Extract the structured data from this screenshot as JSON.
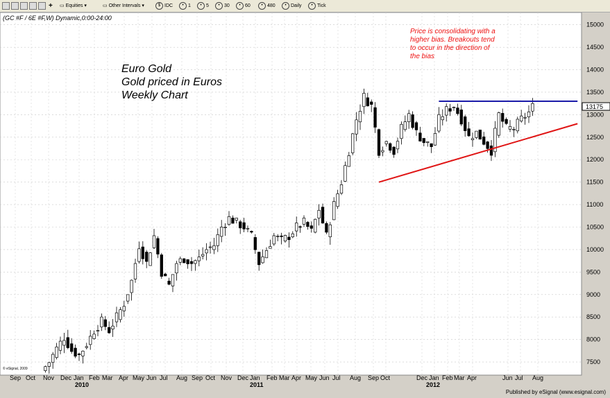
{
  "toolbar": {
    "equities_label": "Equities",
    "intervals_label": "Other Intervals",
    "buttons": [
      "IDC",
      "1",
      "5",
      "30",
      "60",
      "480",
      "Daily",
      "Tick"
    ]
  },
  "chart_data": {
    "type": "candlestick",
    "symbol_label": "(GC #F / 6E #F,W) Dynamic,0:00-24:00",
    "annotation_main": [
      "Euro Gold",
      "Gold priced in Euros",
      "Weekly Chart"
    ],
    "annotation_note": [
      "Price is consolidating with a",
      "higher bias. Breakouts tend",
      "to occur in the direction of",
      "the bias"
    ],
    "watermark": "© eSignal, 2009",
    "last_price": "13175",
    "y_ticks": [
      "15000",
      "14500",
      "14000",
      "13500",
      "13000",
      "12500",
      "12000",
      "11500",
      "11000",
      "10500",
      "10000",
      "9500",
      "9000",
      "8500",
      "8000",
      "7500"
    ],
    "ylim": [
      7300,
      15150
    ],
    "month_labels": [
      "Sep",
      "Oct",
      "Nov",
      "Dec",
      "Jan",
      "Feb",
      "Mar",
      "Apr",
      "May",
      "Jun",
      "Jul",
      "Aug",
      "Sep",
      "Oct",
      "Nov",
      "Dec",
      "Jan",
      "Feb",
      "Mar",
      "Apr",
      "May",
      "Jun",
      "Jul",
      "Aug",
      "Sep",
      "Oct",
      "Dec",
      "Jan",
      "Feb",
      "Mar",
      "Apr",
      "Jun",
      "Jul",
      "Aug"
    ],
    "year_labels": [
      "2010",
      "2011",
      "2012"
    ],
    "close_anchors": [
      [
        0,
        7300
      ],
      [
        2,
        7500
      ],
      [
        4,
        7800
      ],
      [
        6,
        8050
      ],
      [
        8,
        7750
      ],
      [
        10,
        7650
      ],
      [
        12,
        7900
      ],
      [
        14,
        8200
      ],
      [
        16,
        8400
      ],
      [
        18,
        8200
      ],
      [
        20,
        8500
      ],
      [
        22,
        8800
      ],
      [
        24,
        9300
      ],
      [
        26,
        10100
      ],
      [
        28,
        9700
      ],
      [
        30,
        10300
      ],
      [
        32,
        9500
      ],
      [
        34,
        9200
      ],
      [
        36,
        9700
      ],
      [
        38,
        9800
      ],
      [
        40,
        9700
      ],
      [
        42,
        9800
      ],
      [
        44,
        10000
      ],
      [
        46,
        10100
      ],
      [
        48,
        10500
      ],
      [
        50,
        10700
      ],
      [
        52,
        10600
      ],
      [
        54,
        10500
      ],
      [
        56,
        10300
      ],
      [
        58,
        9700
      ],
      [
        60,
        10000
      ],
      [
        62,
        10300
      ],
      [
        64,
        10200
      ],
      [
        66,
        10300
      ],
      [
        68,
        10500
      ],
      [
        70,
        10600
      ],
      [
        72,
        10400
      ],
      [
        74,
        10900
      ],
      [
        76,
        10300
      ],
      [
        78,
        11000
      ],
      [
        80,
        11500
      ],
      [
        82,
        12200
      ],
      [
        84,
        12900
      ],
      [
        86,
        13400
      ],
      [
        88,
        13200
      ],
      [
        90,
        12200
      ],
      [
        92,
        12400
      ],
      [
        94,
        12200
      ],
      [
        96,
        12700
      ],
      [
        98,
        13000
      ],
      [
        100,
        12600
      ],
      [
        102,
        12400
      ],
      [
        104,
        12300
      ],
      [
        106,
        12900
      ],
      [
        108,
        13100
      ],
      [
        110,
        13200
      ],
      [
        112,
        12900
      ],
      [
        114,
        12500
      ],
      [
        116,
        12600
      ],
      [
        118,
        12400
      ],
      [
        120,
        12200
      ],
      [
        122,
        13000
      ],
      [
        124,
        12700
      ],
      [
        126,
        12700
      ],
      [
        128,
        12900
      ],
      [
        130,
        13050
      ],
      [
        131,
        13175
      ]
    ],
    "trendlines": [
      {
        "name": "resistance",
        "color": "#1a1aa8",
        "start": [
          106,
          13300
        ],
        "end": [
          143,
          13300
        ]
      },
      {
        "name": "support",
        "color": "#e01515",
        "start": [
          90,
          11500
        ],
        "end": [
          143,
          12800
        ]
      }
    ],
    "colors": {
      "bull": "#ffffff",
      "bear": "#000000",
      "plot_bg": "#ffffff",
      "note": "#ee1111",
      "main_note": "#000000"
    }
  },
  "footer": {
    "published": "Published by eSignal (www.esignal.com)"
  }
}
